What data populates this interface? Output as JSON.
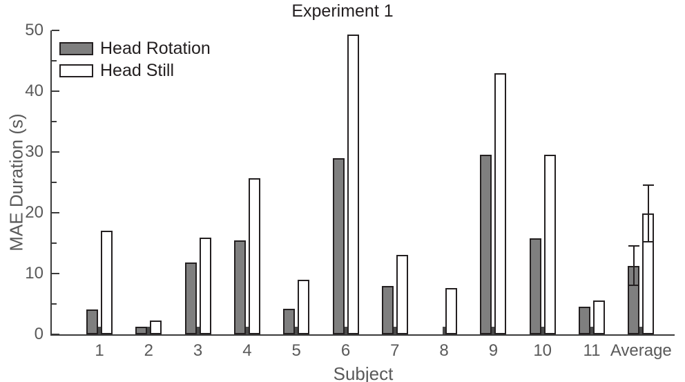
{
  "title": "Experiment 1",
  "chart_data": {
    "type": "bar",
    "title": "Experiment 1",
    "xlabel": "Subject",
    "ylabel": "MAE Duration (s)",
    "ylim": [
      0,
      50
    ],
    "y_major_ticks": [
      0,
      10,
      20,
      30,
      40,
      50
    ],
    "y_minor_ticks": [
      5,
      15,
      25,
      35,
      45
    ],
    "grid": false,
    "legend_position": "top-left",
    "categories": [
      "1",
      "2",
      "3",
      "4",
      "5",
      "6",
      "7",
      "8",
      "9",
      "10",
      "11",
      "Average"
    ],
    "series": [
      {
        "name": "Head Rotation",
        "color": "#7f7f7f",
        "values": [
          4.1,
          1.2,
          11.8,
          15.4,
          4.2,
          29.0,
          8.0,
          0,
          29.6,
          15.8,
          4.5,
          11.3
        ],
        "errors": [
          null,
          null,
          null,
          null,
          null,
          null,
          null,
          null,
          null,
          null,
          null,
          3.2
        ]
      },
      {
        "name": "Head Still",
        "color": "#ffffff",
        "values": [
          17.1,
          2.3,
          15.9,
          25.7,
          9.0,
          49.3,
          13.1,
          7.6,
          43.0,
          29.5,
          5.6,
          19.9
        ],
        "errors": [
          null,
          null,
          null,
          null,
          null,
          null,
          null,
          null,
          null,
          null,
          null,
          4.7
        ]
      }
    ]
  },
  "colors": {
    "bar_outline": "#231f20",
    "axis": "#3a3a3a",
    "text_primary": "#231f20",
    "text_axis": "#595959"
  }
}
